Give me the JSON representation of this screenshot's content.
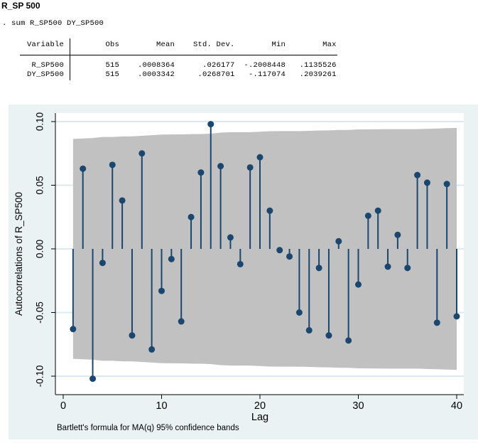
{
  "page": {
    "title": "R_SP 500",
    "command": ". sum R_SP500 DY_SP500"
  },
  "summary_table": {
    "columns": [
      "Variable",
      "Obs",
      "Mean",
      "Std. Dev.",
      "Min",
      "Max"
    ],
    "rows": [
      {
        "variable": "R_SP500",
        "obs": "515",
        "mean": ".0008364",
        "std_dev": ".026177",
        "min": "-.2008448",
        "max": ".1135526"
      },
      {
        "variable": "DY_SP500",
        "obs": "515",
        "mean": ".0003342",
        "std_dev": ".0268701",
        "min": "-.117074",
        "max": ".2039261"
      }
    ]
  },
  "chart_data": {
    "type": "stem",
    "subtype": "autocorrelogram",
    "title": "",
    "xlabel": "Lag",
    "ylabel": "Autocorrelations of R_SP500",
    "footnote": "Bartlett's formula for MA(q) 95% confidence bands",
    "x_ticks": [
      0,
      10,
      20,
      30,
      40
    ],
    "y_ticks": [
      0.1,
      0.05,
      0.0,
      -0.05,
      -0.1
    ],
    "y_tick_labels": [
      "0.10",
      "0.05",
      "0.00",
      "-0.05",
      "-0.10"
    ],
    "xlim": [
      -0.9,
      40.8
    ],
    "ylim": [
      -0.115,
      0.107
    ],
    "grid": true,
    "n_obs": 515,
    "confidence_level": 0.95,
    "lags": [
      1,
      2,
      3,
      4,
      5,
      6,
      7,
      8,
      9,
      10,
      11,
      12,
      13,
      14,
      15,
      16,
      17,
      18,
      19,
      20,
      21,
      22,
      23,
      24,
      25,
      26,
      27,
      28,
      29,
      30,
      31,
      32,
      33,
      34,
      35,
      36,
      37,
      38,
      39,
      40
    ],
    "autocorrelations": [
      -0.063,
      0.063,
      -0.102,
      -0.011,
      0.066,
      0.038,
      -0.068,
      0.075,
      -0.079,
      -0.033,
      -0.008,
      -0.057,
      0.025,
      0.06,
      0.098,
      0.065,
      0.009,
      -0.012,
      0.064,
      0.072,
      0.03,
      -0.001,
      -0.006,
      -0.05,
      -0.064,
      -0.015,
      -0.068,
      0.006,
      -0.072,
      -0.028,
      0.026,
      0.03,
      -0.014,
      0.011,
      -0.015,
      0.058,
      0.052,
      -0.058,
      0.051,
      -0.053
    ],
    "band": {
      "method": "bartlett-MA(q)",
      "z": 1.96,
      "halfwidth_lag1": 0.0864,
      "halfwidth_lag40": 0.095
    },
    "colors": {
      "stem": "#1a476f",
      "band": "#c1c1c1",
      "figure_bg": "#eaf2f3",
      "plot_bg": "#ffffff",
      "gridline": "#dde9f1",
      "axis": "#000000"
    }
  }
}
